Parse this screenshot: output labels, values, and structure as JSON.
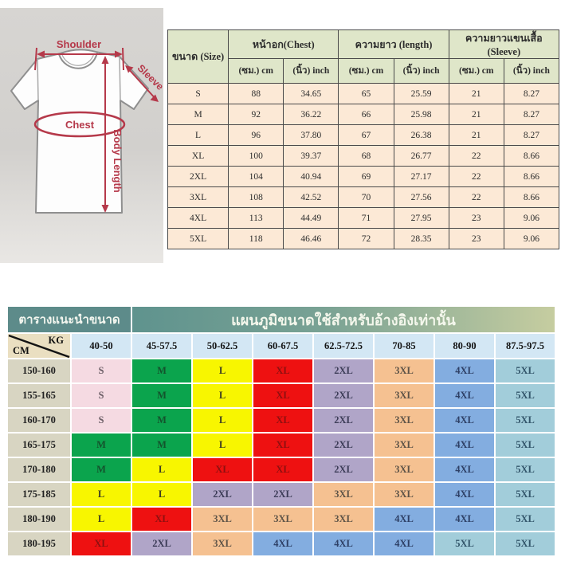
{
  "diagram": {
    "shoulder_label": "Shoulder",
    "sleeve_label": "Sleeve",
    "chest_label": "Chest",
    "body_length_label": "Body Length",
    "annotation_color": "#b5394a"
  },
  "size_table": {
    "header_size": "ขนาด (Size)",
    "header_chest": "หน้าอก(Chest)",
    "header_length": "ความยาว (length)",
    "header_sleeve": "ความยาวแขนเสื้อ (Sleeve)",
    "subheader_cm": "(ซม.) cm",
    "subheader_inch": "(นิ้ว) inch",
    "rows": [
      {
        "size": "S",
        "chest_cm": "88",
        "chest_in": "34.65",
        "length_cm": "65",
        "length_in": "25.59",
        "sleeve_cm": "21",
        "sleeve_in": "8.27"
      },
      {
        "size": "M",
        "chest_cm": "92",
        "chest_in": "36.22",
        "length_cm": "66",
        "length_in": "25.98",
        "sleeve_cm": "21",
        "sleeve_in": "8.27"
      },
      {
        "size": "L",
        "chest_cm": "96",
        "chest_in": "37.80",
        "length_cm": "67",
        "length_in": "26.38",
        "sleeve_cm": "21",
        "sleeve_in": "8.27"
      },
      {
        "size": "XL",
        "chest_cm": "100",
        "chest_in": "39.37",
        "length_cm": "68",
        "length_in": "26.77",
        "sleeve_cm": "22",
        "sleeve_in": "8.66"
      },
      {
        "size": "2XL",
        "chest_cm": "104",
        "chest_in": "40.94",
        "length_cm": "69",
        "length_in": "27.17",
        "sleeve_cm": "22",
        "sleeve_in": "8.66"
      },
      {
        "size": "3XL",
        "chest_cm": "108",
        "chest_in": "42.52",
        "length_cm": "70",
        "length_in": "27.56",
        "sleeve_cm": "22",
        "sleeve_in": "8.66"
      },
      {
        "size": "4XL",
        "chest_cm": "113",
        "chest_in": "44.49",
        "length_cm": "71",
        "length_in": "27.95",
        "sleeve_cm": "23",
        "sleeve_in": "9.06"
      },
      {
        "size": "5XL",
        "chest_cm": "118",
        "chest_in": "46.46",
        "length_cm": "72",
        "length_in": "28.35",
        "sleeve_cm": "23",
        "sleeve_in": "9.06"
      }
    ]
  },
  "fit_chart": {
    "title_left": "ตารางแนะนำขนาด",
    "title_right": "แผนภูมิขนาดใช้สำหรับอ้างอิงเท่านั้น",
    "axis_kg": "KG",
    "axis_cm": "CM",
    "weight_cols": [
      "40-50",
      "45-57.5",
      "50-62.5",
      "60-67.5",
      "62.5-72.5",
      "70-85",
      "80-90",
      "87.5-97.5"
    ],
    "palette": {
      "pink": {
        "bg": "#f5dae2",
        "text": "#6b5e66"
      },
      "green": {
        "bg": "#0ba44d",
        "text": "#14532d"
      },
      "yellow": {
        "bg": "#f8f600",
        "text": "#3e3e22"
      },
      "red": {
        "bg": "#ee1111",
        "text": "#8f1010"
      },
      "purple": {
        "bg": "#b0a5c8",
        "text": "#3d3d58"
      },
      "orange": {
        "bg": "#f5c191",
        "text": "#5d5347"
      },
      "blue": {
        "bg": "#83ade0",
        "text": "#2e4066"
      },
      "lightblue": {
        "bg": "#a2cdda",
        "text": "#33566b"
      }
    },
    "rows": [
      {
        "height": "150-160",
        "cells": [
          {
            "label": "S",
            "color": "pink"
          },
          {
            "label": "M",
            "color": "green"
          },
          {
            "label": "L",
            "color": "yellow"
          },
          {
            "label": "XL",
            "color": "red"
          },
          {
            "label": "2XL",
            "color": "purple"
          },
          {
            "label": "3XL",
            "color": "orange"
          },
          {
            "label": "4XL",
            "color": "blue"
          },
          {
            "label": "5XL",
            "color": "lightblue"
          }
        ]
      },
      {
        "height": "155-165",
        "cells": [
          {
            "label": "S",
            "color": "pink"
          },
          {
            "label": "M",
            "color": "green"
          },
          {
            "label": "L",
            "color": "yellow"
          },
          {
            "label": "XL",
            "color": "red"
          },
          {
            "label": "2XL",
            "color": "purple"
          },
          {
            "label": "3XL",
            "color": "orange"
          },
          {
            "label": "4XL",
            "color": "blue"
          },
          {
            "label": "5XL",
            "color": "lightblue"
          }
        ]
      },
      {
        "height": "160-170",
        "cells": [
          {
            "label": "S",
            "color": "pink"
          },
          {
            "label": "M",
            "color": "green"
          },
          {
            "label": "L",
            "color": "yellow"
          },
          {
            "label": "XL",
            "color": "red"
          },
          {
            "label": "2XL",
            "color": "purple"
          },
          {
            "label": "3XL",
            "color": "orange"
          },
          {
            "label": "4XL",
            "color": "blue"
          },
          {
            "label": "5XL",
            "color": "lightblue"
          }
        ]
      },
      {
        "height": "165-175",
        "cells": [
          {
            "label": "M",
            "color": "green"
          },
          {
            "label": "M",
            "color": "green"
          },
          {
            "label": "L",
            "color": "yellow"
          },
          {
            "label": "XL",
            "color": "red"
          },
          {
            "label": "2XL",
            "color": "purple"
          },
          {
            "label": "3XL",
            "color": "orange"
          },
          {
            "label": "4XL",
            "color": "blue"
          },
          {
            "label": "5XL",
            "color": "lightblue"
          }
        ]
      },
      {
        "height": "170-180",
        "cells": [
          {
            "label": "M",
            "color": "green"
          },
          {
            "label": "L",
            "color": "yellow"
          },
          {
            "label": "XL",
            "color": "red"
          },
          {
            "label": "XL",
            "color": "red"
          },
          {
            "label": "2XL",
            "color": "purple"
          },
          {
            "label": "3XL",
            "color": "orange"
          },
          {
            "label": "4XL",
            "color": "blue"
          },
          {
            "label": "5XL",
            "color": "lightblue"
          }
        ]
      },
      {
        "height": "175-185",
        "cells": [
          {
            "label": "L",
            "color": "yellow"
          },
          {
            "label": "L",
            "color": "yellow"
          },
          {
            "label": "2XL",
            "color": "purple"
          },
          {
            "label": "2XL",
            "color": "purple"
          },
          {
            "label": "3XL",
            "color": "orange"
          },
          {
            "label": "3XL",
            "color": "orange"
          },
          {
            "label": "4XL",
            "color": "blue"
          },
          {
            "label": "5XL",
            "color": "lightblue"
          }
        ]
      },
      {
        "height": "180-190",
        "cells": [
          {
            "label": "L",
            "color": "yellow"
          },
          {
            "label": "XL",
            "color": "red"
          },
          {
            "label": "3XL",
            "color": "orange"
          },
          {
            "label": "3XL",
            "color": "orange"
          },
          {
            "label": "3XL",
            "color": "orange"
          },
          {
            "label": "4XL",
            "color": "blue"
          },
          {
            "label": "4XL",
            "color": "blue"
          },
          {
            "label": "5XL",
            "color": "lightblue"
          }
        ]
      },
      {
        "height": "180-195",
        "cells": [
          {
            "label": "XL",
            "color": "red"
          },
          {
            "label": "2XL",
            "color": "purple"
          },
          {
            "label": "3XL",
            "color": "orange"
          },
          {
            "label": "4XL",
            "color": "blue"
          },
          {
            "label": "4XL",
            "color": "blue"
          },
          {
            "label": "4XL",
            "color": "blue"
          },
          {
            "label": "5XL",
            "color": "lightblue"
          },
          {
            "label": "5XL",
            "color": "lightblue"
          }
        ]
      }
    ]
  },
  "chart_data": [
    {
      "type": "table",
      "title": "T-shirt measurements by size",
      "columns": [
        "ขนาด (Size)",
        "หน้าอก(Chest) (ซม.) cm",
        "หน้าอก(Chest) (นิ้ว) inch",
        "ความยาว (length) (ซม.) cm",
        "ความยาว (length) (นิ้ว) inch",
        "ความยาวแขนเสื้อ (Sleeve) (ซม.) cm",
        "ความยาวแขนเสื้อ (Sleeve) (นิ้ว) inch"
      ],
      "rows": [
        [
          "S",
          88,
          34.65,
          65,
          25.59,
          21,
          8.27
        ],
        [
          "M",
          92,
          36.22,
          66,
          25.98,
          21,
          8.27
        ],
        [
          "L",
          96,
          37.8,
          67,
          26.38,
          21,
          8.27
        ],
        [
          "XL",
          100,
          39.37,
          68,
          26.77,
          22,
          8.66
        ],
        [
          "2XL",
          104,
          40.94,
          69,
          27.17,
          22,
          8.66
        ],
        [
          "3XL",
          108,
          42.52,
          70,
          27.56,
          22,
          8.66
        ],
        [
          "4XL",
          113,
          44.49,
          71,
          27.95,
          23,
          9.06
        ],
        [
          "5XL",
          118,
          46.46,
          72,
          28.35,
          23,
          9.06
        ]
      ]
    },
    {
      "type": "heatmap",
      "title": "แผนภูมิขนาดใช้สำหรับอ้างอิงเท่านั้น",
      "xlabel": "KG",
      "ylabel": "CM",
      "x": [
        "40-50",
        "45-57.5",
        "50-62.5",
        "60-67.5",
        "62.5-72.5",
        "70-85",
        "80-90",
        "87.5-97.5"
      ],
      "y": [
        "150-160",
        "155-165",
        "160-170",
        "165-175",
        "170-180",
        "175-185",
        "180-190",
        "180-195"
      ],
      "values": [
        [
          "S",
          "M",
          "L",
          "XL",
          "2XL",
          "3XL",
          "4XL",
          "5XL"
        ],
        [
          "S",
          "M",
          "L",
          "XL",
          "2XL",
          "3XL",
          "4XL",
          "5XL"
        ],
        [
          "S",
          "M",
          "L",
          "XL",
          "2XL",
          "3XL",
          "4XL",
          "5XL"
        ],
        [
          "M",
          "M",
          "L",
          "XL",
          "2XL",
          "3XL",
          "4XL",
          "5XL"
        ],
        [
          "M",
          "L",
          "XL",
          "XL",
          "2XL",
          "3XL",
          "4XL",
          "5XL"
        ],
        [
          "L",
          "L",
          "2XL",
          "2XL",
          "3XL",
          "3XL",
          "4XL",
          "5XL"
        ],
        [
          "L",
          "XL",
          "3XL",
          "3XL",
          "3XL",
          "4XL",
          "4XL",
          "5XL"
        ],
        [
          "XL",
          "2XL",
          "3XL",
          "4XL",
          "4XL",
          "4XL",
          "5XL",
          "5XL"
        ]
      ]
    }
  ]
}
